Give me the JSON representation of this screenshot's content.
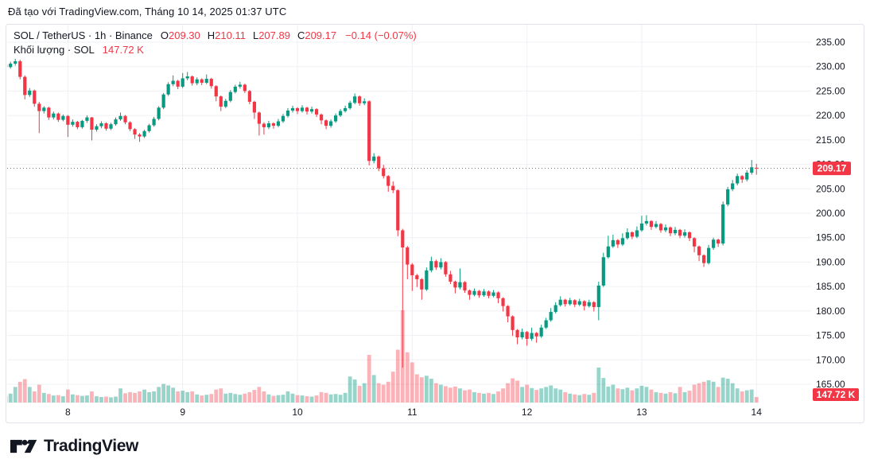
{
  "attribution": "Đã tạo với TradingView.com, Tháng 10 14, 2025 01:37 UTC",
  "legend": {
    "symbol_title": "SOL / TetherUS · 1h · Binance",
    "open_label": "O",
    "open": "209.30",
    "high_label": "H",
    "high": "210.11",
    "low_label": "L",
    "low": "207.89",
    "close_label": "C",
    "close": "209.17",
    "change": "−0.14 (−0.07%)",
    "volume_label": "Khối lượng · SOL",
    "volume_value": "147.72 K"
  },
  "footer": {
    "logo_text": "TradingView"
  },
  "colors": {
    "up": "#089981",
    "down": "#f23645",
    "up_volume": "rgba(8,153,129,0.42)",
    "down_volume": "rgba(242,54,69,0.38)",
    "grid": "#eef0f4",
    "card_border": "#e0e3eb",
    "text": "#131722",
    "label_bg": "#f23645",
    "label_text": "#ffffff",
    "last_price_line": "#f23645"
  },
  "chart_data": {
    "type": "candlestick_with_volume",
    "symbol": "SOL / TetherUS",
    "interval": "1h",
    "exchange": "Binance",
    "y_axis": {
      "side": "right",
      "ticks": [
        {
          "v": 235,
          "label": "235.00"
        },
        {
          "v": 230,
          "label": "230.00"
        },
        {
          "v": 225,
          "label": "225.00"
        },
        {
          "v": 220,
          "label": "220.00"
        },
        {
          "v": 215,
          "label": "215.00"
        },
        {
          "v": 210,
          "label": "210.00"
        },
        {
          "v": 205,
          "label": "205.00"
        },
        {
          "v": 200,
          "label": "200.00"
        },
        {
          "v": 195,
          "label": "195.00"
        },
        {
          "v": 190,
          "label": "190.00"
        },
        {
          "v": 185,
          "label": "185.00"
        },
        {
          "v": 180,
          "label": "180.00"
        },
        {
          "v": 175,
          "label": "175.00"
        },
        {
          "v": 170,
          "label": "170.00"
        },
        {
          "v": 165,
          "label": "165.00"
        }
      ]
    },
    "x_axis": {
      "ticks": [
        {
          "i": 13,
          "label": "8"
        },
        {
          "i": 37,
          "label": "9"
        },
        {
          "i": 61,
          "label": "10"
        },
        {
          "i": 85,
          "label": "11"
        },
        {
          "i": 109,
          "label": "12"
        },
        {
          "i": 133,
          "label": "13"
        },
        {
          "i": 157,
          "label": "14"
        }
      ]
    },
    "last_price": {
      "value": 209.17,
      "label": "209.17"
    },
    "current_volume_label": "147.72 K",
    "candles": [
      [
        230.4,
        230.9,
        229.4,
        229.9,
        180
      ],
      [
        229.9,
        231.0,
        229.6,
        230.6,
        240
      ],
      [
        230.6,
        231.6,
        230.2,
        231.1,
        420
      ],
      [
        231.1,
        231.4,
        227.4,
        227.9,
        560
      ],
      [
        227.9,
        228.2,
        223.3,
        224.2,
        630
      ],
      [
        224.2,
        225.6,
        223.8,
        225.1,
        420
      ],
      [
        225.1,
        225.3,
        221.8,
        222.4,
        300
      ],
      [
        222.4,
        222.8,
        216.4,
        220.9,
        480
      ],
      [
        220.9,
        221.9,
        220.4,
        221.6,
        260
      ],
      [
        221.6,
        221.8,
        219.1,
        219.6,
        230
      ],
      [
        219.6,
        220.8,
        219.2,
        220.4,
        190
      ],
      [
        220.4,
        220.6,
        218.7,
        219.1,
        200
      ],
      [
        219.1,
        220.2,
        218.8,
        219.9,
        170
      ],
      [
        219.9,
        220.1,
        215.6,
        218.1,
        350
      ],
      [
        218.1,
        219.2,
        217.7,
        218.7,
        220
      ],
      [
        218.7,
        218.9,
        217.2,
        217.6,
        200
      ],
      [
        217.6,
        219.1,
        217.3,
        218.9,
        180
      ],
      [
        218.9,
        220.0,
        218.5,
        219.6,
        190
      ],
      [
        219.6,
        219.7,
        214.9,
        217.1,
        300
      ],
      [
        217.1,
        218.2,
        216.7,
        217.8,
        170
      ],
      [
        217.8,
        218.8,
        217.4,
        218.4,
        150
      ],
      [
        218.4,
        218.6,
        216.9,
        217.3,
        160
      ],
      [
        217.3,
        218.5,
        217.0,
        218.2,
        140
      ],
      [
        218.2,
        219.6,
        217.9,
        219.2,
        160
      ],
      [
        219.2,
        220.6,
        218.9,
        219.9,
        380
      ],
      [
        219.9,
        220.1,
        218.2,
        218.6,
        250
      ],
      [
        218.6,
        218.8,
        216.8,
        217.2,
        280
      ],
      [
        217.2,
        217.4,
        215.2,
        216.1,
        260
      ],
      [
        216.1,
        216.4,
        214.6,
        215.7,
        300
      ],
      [
        215.7,
        217.1,
        215.4,
        216.8,
        350
      ],
      [
        216.8,
        218.3,
        216.5,
        218.0,
        280
      ],
      [
        218.0,
        219.7,
        217.7,
        219.3,
        300
      ],
      [
        219.3,
        221.9,
        219.0,
        221.6,
        420
      ],
      [
        221.6,
        224.6,
        221.3,
        224.3,
        500
      ],
      [
        224.3,
        226.8,
        224.0,
        226.4,
        460
      ],
      [
        226.4,
        228.2,
        226.0,
        227.1,
        400
      ],
      [
        227.1,
        227.3,
        225.4,
        225.9,
        300
      ],
      [
        225.9,
        228.7,
        225.6,
        227.6,
        320
      ],
      [
        227.6,
        228.9,
        227.2,
        228.0,
        280
      ],
      [
        228.0,
        228.2,
        226.1,
        226.6,
        300
      ],
      [
        226.6,
        227.8,
        226.2,
        227.4,
        220
      ],
      [
        227.4,
        227.6,
        226.2,
        226.7,
        190
      ],
      [
        226.7,
        228.4,
        226.4,
        227.5,
        210
      ],
      [
        227.5,
        227.7,
        225.5,
        226.0,
        230
      ],
      [
        226.0,
        226.2,
        222.9,
        223.9,
        350
      ],
      [
        223.9,
        224.1,
        220.9,
        221.8,
        380
      ],
      [
        221.8,
        223.4,
        221.5,
        223.0,
        240
      ],
      [
        223.0,
        225.2,
        222.7,
        224.8,
        260
      ],
      [
        224.8,
        226.3,
        224.5,
        225.9,
        230
      ],
      [
        225.9,
        226.9,
        225.5,
        226.3,
        210
      ],
      [
        226.3,
        226.5,
        224.6,
        225.0,
        240
      ],
      [
        225.0,
        225.2,
        222.3,
        222.8,
        280
      ],
      [
        222.8,
        223.0,
        219.3,
        220.6,
        340
      ],
      [
        220.6,
        220.8,
        215.9,
        218.3,
        420
      ],
      [
        218.3,
        218.6,
        216.1,
        217.6,
        300
      ],
      [
        217.6,
        218.9,
        217.2,
        218.4,
        220
      ],
      [
        218.4,
        218.6,
        217.3,
        217.9,
        180
      ],
      [
        217.9,
        219.3,
        217.6,
        218.8,
        200
      ],
      [
        218.8,
        220.3,
        218.5,
        219.9,
        210
      ],
      [
        219.9,
        221.5,
        219.6,
        221.0,
        300
      ],
      [
        221.0,
        222.0,
        220.6,
        221.5,
        240
      ],
      [
        221.5,
        221.7,
        220.3,
        220.9,
        200
      ],
      [
        220.9,
        222.1,
        220.6,
        221.6,
        190
      ],
      [
        221.6,
        221.8,
        220.2,
        220.8,
        170
      ],
      [
        220.8,
        221.8,
        220.4,
        221.3,
        160
      ],
      [
        221.3,
        221.5,
        219.7,
        220.2,
        190
      ],
      [
        220.2,
        220.4,
        218.2,
        219.0,
        280
      ],
      [
        219.0,
        219.2,
        217.2,
        217.9,
        260
      ],
      [
        217.9,
        219.2,
        217.5,
        218.8,
        220
      ],
      [
        218.8,
        220.4,
        218.5,
        220.0,
        230
      ],
      [
        220.0,
        221.3,
        219.7,
        220.9,
        210
      ],
      [
        220.9,
        222.0,
        220.6,
        221.5,
        260
      ],
      [
        221.5,
        223.0,
        221.2,
        222.6,
        700
      ],
      [
        222.6,
        224.5,
        222.3,
        223.9,
        620
      ],
      [
        223.9,
        224.1,
        222.0,
        222.5,
        450
      ],
      [
        222.5,
        223.5,
        222.1,
        222.9,
        520
      ],
      [
        222.9,
        223.1,
        209.8,
        210.7,
        1280
      ],
      [
        210.7,
        212.3,
        210.2,
        211.6,
        740
      ],
      [
        211.6,
        211.8,
        208.6,
        209.2,
        520
      ],
      [
        209.2,
        209.9,
        207.1,
        207.6,
        480
      ],
      [
        207.6,
        207.8,
        204.4,
        205.6,
        560
      ],
      [
        205.6,
        206.5,
        204.1,
        204.7,
        830
      ],
      [
        204.7,
        204.9,
        195.3,
        196.5,
        1420
      ],
      [
        196.5,
        196.8,
        168.4,
        193.0,
        2480
      ],
      [
        193.0,
        193.3,
        186.5,
        189.5,
        1350
      ],
      [
        189.5,
        189.8,
        184.1,
        187.3,
        1080
      ],
      [
        187.3,
        187.6,
        184.9,
        186.5,
        760
      ],
      [
        186.5,
        186.7,
        182.3,
        184.4,
        680
      ],
      [
        184.4,
        188.9,
        184.1,
        188.3,
        720
      ],
      [
        188.3,
        191.1,
        187.9,
        190.2,
        640
      ],
      [
        190.2,
        190.5,
        188.4,
        188.9,
        520
      ],
      [
        188.9,
        190.8,
        188.5,
        190.0,
        480
      ],
      [
        190.0,
        190.2,
        187.0,
        187.5,
        440
      ],
      [
        187.5,
        188.2,
        185.5,
        186.0,
        400
      ],
      [
        186.0,
        186.2,
        183.6,
        184.8,
        430
      ],
      [
        184.8,
        188.7,
        184.4,
        185.9,
        380
      ],
      [
        185.9,
        186.1,
        183.7,
        184.2,
        330
      ],
      [
        184.2,
        184.4,
        182.3,
        183.3,
        350
      ],
      [
        183.3,
        184.6,
        183.0,
        184.1,
        280
      ],
      [
        184.1,
        184.3,
        182.7,
        183.2,
        260
      ],
      [
        183.2,
        184.5,
        182.9,
        184.0,
        240
      ],
      [
        184.0,
        184.2,
        182.6,
        183.1,
        260
      ],
      [
        183.1,
        184.3,
        182.8,
        183.8,
        230
      ],
      [
        183.8,
        184.0,
        181.6,
        182.6,
        300
      ],
      [
        182.6,
        182.8,
        179.9,
        181.0,
        380
      ],
      [
        181.0,
        181.2,
        177.7,
        178.9,
        520
      ],
      [
        178.9,
        179.1,
        174.9,
        176.1,
        650
      ],
      [
        176.1,
        176.3,
        173.2,
        174.6,
        590
      ],
      [
        174.6,
        176.4,
        174.2,
        175.7,
        420
      ],
      [
        175.7,
        175.9,
        172.9,
        174.3,
        480
      ],
      [
        174.3,
        176.6,
        173.9,
        175.5,
        390
      ],
      [
        175.5,
        175.7,
        173.5,
        174.8,
        340
      ],
      [
        174.8,
        177.2,
        174.5,
        176.6,
        380
      ],
      [
        176.6,
        178.6,
        176.3,
        178.1,
        420
      ],
      [
        178.1,
        180.6,
        177.8,
        179.8,
        460
      ],
      [
        179.8,
        181.8,
        179.5,
        181.2,
        380
      ],
      [
        181.2,
        183.0,
        180.9,
        182.3,
        350
      ],
      [
        182.3,
        182.5,
        180.9,
        181.4,
        280
      ],
      [
        181.4,
        182.7,
        181.1,
        182.2,
        240
      ],
      [
        182.2,
        182.4,
        180.8,
        181.3,
        220
      ],
      [
        181.3,
        182.5,
        181.0,
        182.0,
        200
      ],
      [
        182.0,
        182.2,
        180.1,
        181.0,
        230
      ],
      [
        181.0,
        182.3,
        180.7,
        181.8,
        210
      ],
      [
        181.8,
        182.0,
        179.9,
        180.8,
        260
      ],
      [
        180.8,
        186.0,
        178.1,
        185.2,
        940
      ],
      [
        185.2,
        191.9,
        184.9,
        191.0,
        660
      ],
      [
        191.0,
        195.4,
        190.7,
        193.2,
        430
      ],
      [
        193.2,
        195.6,
        192.9,
        194.5,
        480
      ],
      [
        194.5,
        194.7,
        192.9,
        193.6,
        380
      ],
      [
        193.6,
        195.9,
        193.3,
        194.9,
        360
      ],
      [
        194.9,
        196.9,
        194.6,
        196.1,
        400
      ],
      [
        196.1,
        196.3,
        194.7,
        195.2,
        330
      ],
      [
        195.2,
        197.3,
        194.9,
        196.5,
        380
      ],
      [
        196.5,
        199.5,
        196.2,
        197.9,
        450
      ],
      [
        197.9,
        199.6,
        197.5,
        198.4,
        420
      ],
      [
        198.4,
        198.6,
        196.6,
        197.2,
        350
      ],
      [
        197.2,
        198.4,
        196.9,
        197.8,
        280
      ],
      [
        197.8,
        198.0,
        196.0,
        196.5,
        260
      ],
      [
        196.5,
        197.7,
        196.1,
        197.1,
        240
      ],
      [
        197.1,
        197.3,
        195.3,
        195.9,
        280
      ],
      [
        195.9,
        197.2,
        195.5,
        196.6,
        250
      ],
      [
        196.6,
        196.8,
        194.9,
        195.4,
        420
      ],
      [
        195.4,
        196.7,
        195.0,
        196.1,
        280
      ],
      [
        196.1,
        196.3,
        194.3,
        194.9,
        320
      ],
      [
        194.9,
        195.1,
        192.0,
        193.2,
        480
      ],
      [
        193.2,
        193.4,
        190.2,
        191.4,
        520
      ],
      [
        191.4,
        191.6,
        189.0,
        189.8,
        560
      ],
      [
        189.8,
        193.5,
        189.5,
        192.9,
        600
      ],
      [
        192.9,
        195.0,
        192.5,
        194.6,
        560
      ],
      [
        194.6,
        194.8,
        193.1,
        193.8,
        420
      ],
      [
        193.8,
        202.4,
        193.4,
        201.8,
        670
      ],
      [
        201.8,
        205.4,
        201.4,
        204.9,
        640
      ],
      [
        204.9,
        206.8,
        204.5,
        206.1,
        520
      ],
      [
        206.1,
        208.1,
        205.7,
        207.6,
        380
      ],
      [
        207.6,
        207.8,
        206.2,
        206.9,
        300
      ],
      [
        206.9,
        208.8,
        206.5,
        208.3,
        330
      ],
      [
        208.3,
        210.9,
        207.9,
        209.4,
        350
      ],
      [
        209.3,
        210.11,
        207.89,
        209.17,
        148
      ]
    ]
  }
}
